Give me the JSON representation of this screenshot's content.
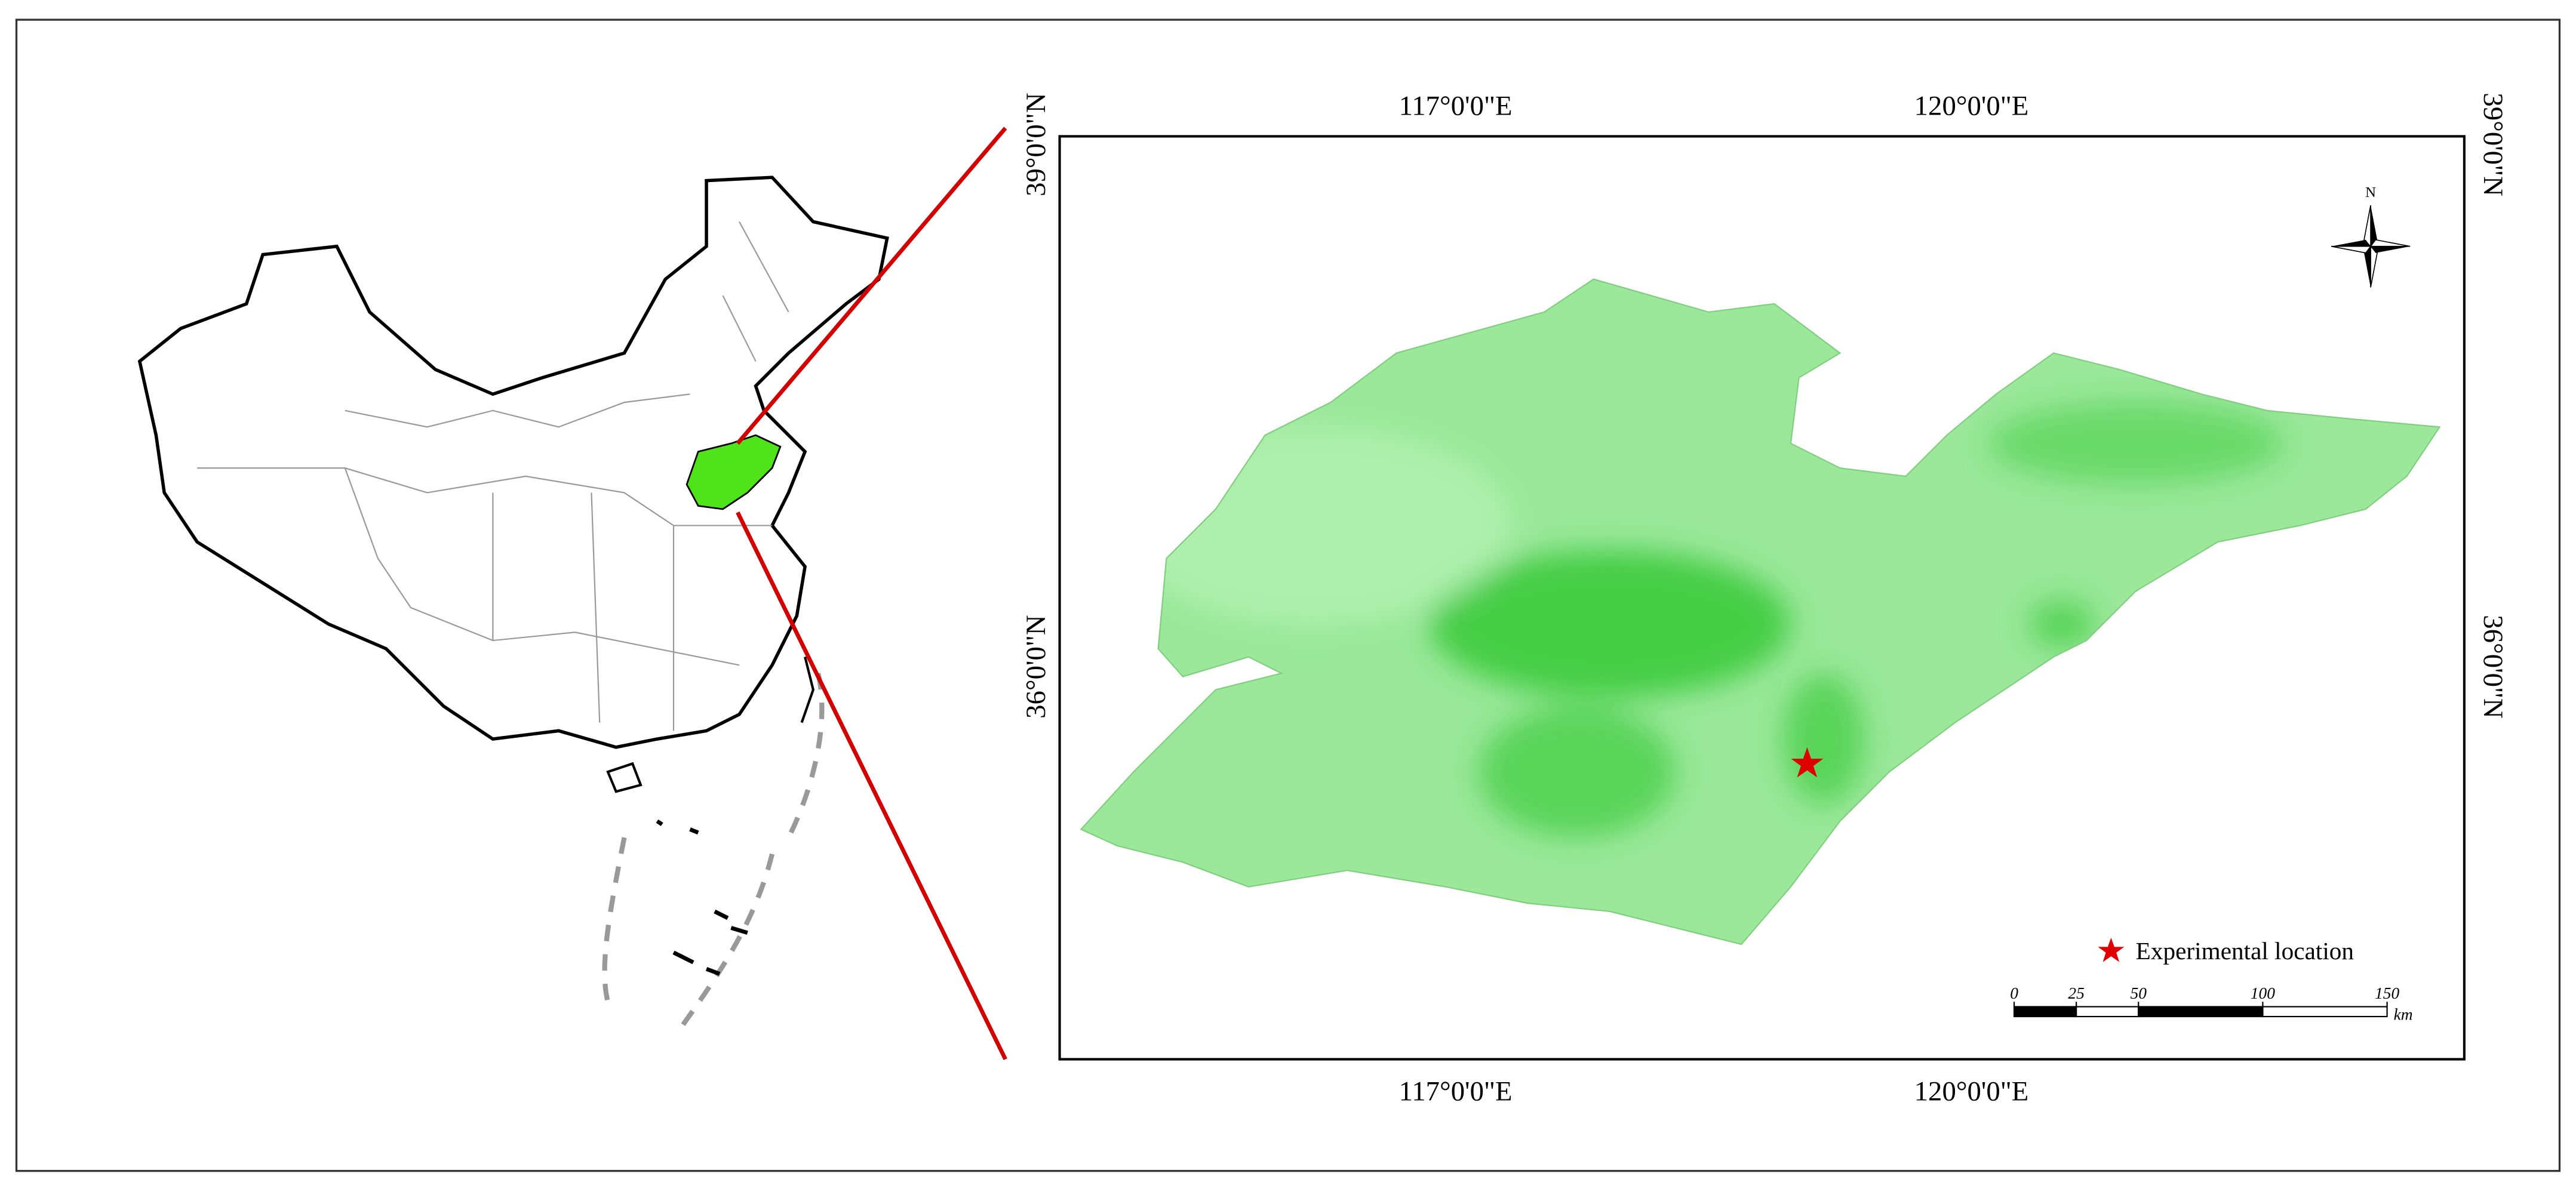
{
  "map": {
    "lon_labels": [
      "117°0'0\"E",
      "120°0'0\"E"
    ],
    "lat_labels": [
      "39°0'0\"N",
      "36°0'0\"N"
    ],
    "north_label": "N",
    "legend": {
      "label": "Experimental location"
    },
    "scale_bar": {
      "ticks": [
        0,
        25,
        50,
        100,
        150
      ],
      "unit": "km"
    }
  }
}
